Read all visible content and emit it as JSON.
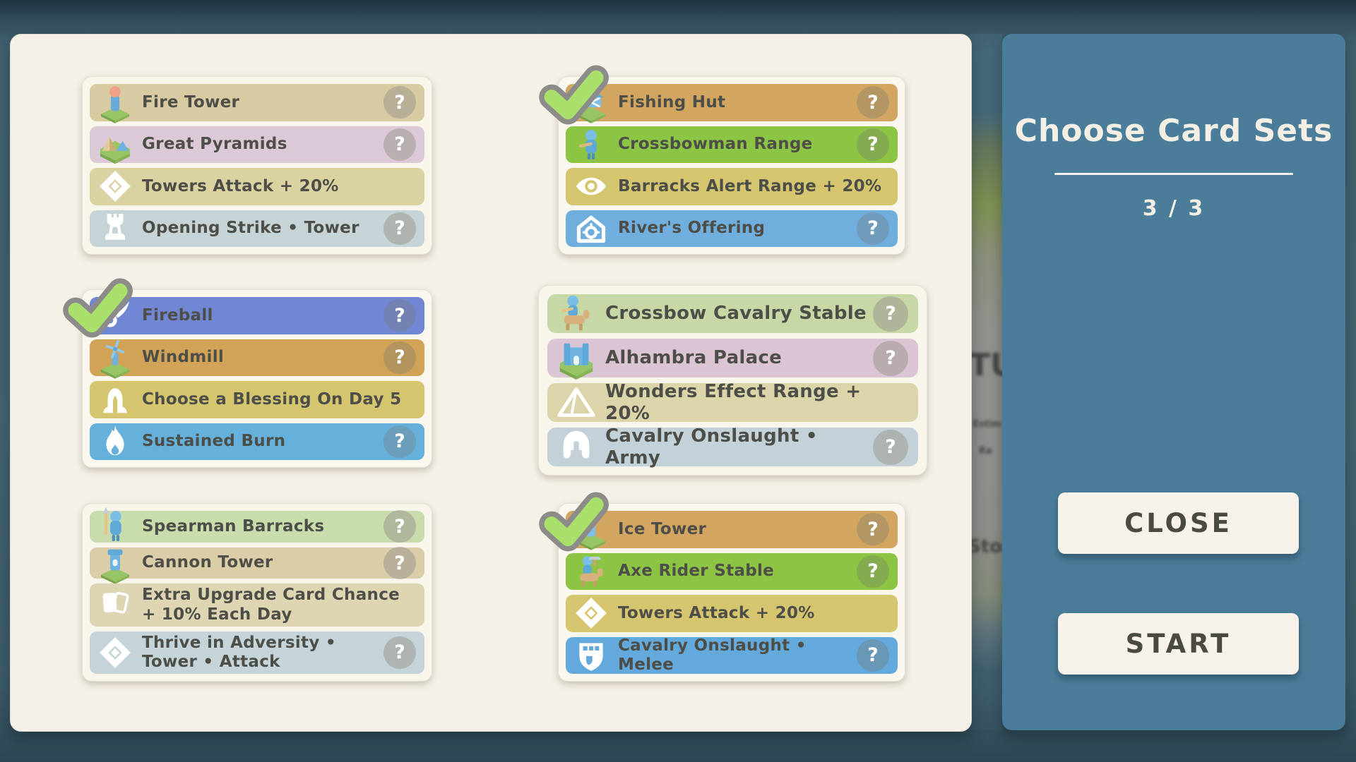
{
  "right_panel": {
    "title": "Choose Card Sets",
    "counter": "3 / 3",
    "close_label": "CLOSE",
    "start_label": "START"
  },
  "help_symbol": "?",
  "background_fragments": {
    "top": "TU",
    "mid1": "Estim",
    "mid2": "Ra",
    "bottom": "Stor"
  },
  "colors": {
    "right_panel_teal": "#4A7D99",
    "main_panel_cream": "#F5F1E8",
    "check_green": "#A9DF6B",
    "check_outline": "#8B8B89",
    "button_text": "#4A4A44",
    "row_text": "#4E4E48"
  },
  "sets": [
    {
      "name": "card-set-1",
      "selected": false,
      "rows": [
        {
          "label": "Fire Tower",
          "icon": "fire-tower",
          "color": "#D8CBA2",
          "help": true
        },
        {
          "label": "Great Pyramids",
          "icon": "great-pyramids",
          "color": "#DCC9D7",
          "help": true
        },
        {
          "label": "Towers Attack + 20%",
          "icon": "gear-burst",
          "color": "#DAD2A1",
          "help": false
        },
        {
          "label": "Opening Strike • Tower",
          "icon": "rook",
          "color": "#C6D4D7",
          "help": true
        }
      ]
    },
    {
      "name": "card-set-2",
      "selected": true,
      "rows": [
        {
          "label": "Fishing Hut",
          "icon": "fishing-hut",
          "color": "#D2A660",
          "help": true
        },
        {
          "label": "Crossbowman Range",
          "icon": "crossbowman",
          "color": "#8CC443",
          "help": true
        },
        {
          "label": "Barracks Alert Range + 20%",
          "icon": "eye",
          "color": "#D5C56F",
          "help": false
        },
        {
          "label": "River's Offering",
          "icon": "house-offering",
          "color": "#6FAEDD",
          "help": true
        }
      ]
    },
    {
      "name": "card-set-3",
      "selected": true,
      "rows": [
        {
          "label": "Fireball",
          "icon": "fireball",
          "color": "#7287D4",
          "help": true
        },
        {
          "label": "Windmill",
          "icon": "windmill",
          "color": "#D1A356",
          "help": true
        },
        {
          "label": "Choose a Blessing On Day 5",
          "icon": "blessing",
          "color": "#D5C56F",
          "help": false
        },
        {
          "label": "Sustained Burn",
          "icon": "flame",
          "color": "#66B1DC",
          "help": true
        }
      ]
    },
    {
      "name": "card-set-4",
      "selected": false,
      "rows": [
        {
          "label": "Crossbow Cavalry Stable",
          "icon": "crossbow-cavalry",
          "color": "#C7D7A6",
          "help": true
        },
        {
          "label": "Alhambra Palace",
          "icon": "alhambra",
          "color": "#DBC5D4",
          "help": true
        },
        {
          "label": "Wonders Effect Range + 20%",
          "icon": "pyramid-outline",
          "color": "#DDD5AA",
          "help": false
        },
        {
          "label": "Cavalry Onslaught • Army",
          "icon": "helmet",
          "color": "#C2D2D8",
          "help": true
        }
      ]
    },
    {
      "name": "card-set-5",
      "selected": false,
      "rows": [
        {
          "label": "Spearman Barracks",
          "icon": "spearman",
          "color": "#C9DCAC",
          "help": true
        },
        {
          "label": "Cannon Tower",
          "icon": "cannon-tower",
          "color": "#DCCDA9",
          "help": true
        },
        {
          "label": "Extra Upgrade Card Chance + 10% Each Day",
          "icon": "cards",
          "color": "#DED6B2",
          "help": false
        },
        {
          "label": "Thrive in Adversity • Tower • Attack",
          "icon": "gear-burst",
          "color": "#C4D4D8",
          "help": true
        }
      ]
    },
    {
      "name": "card-set-6",
      "selected": true,
      "rows": [
        {
          "label": "Ice Tower",
          "icon": "ice-tower",
          "color": "#D2A660",
          "help": true
        },
        {
          "label": "Axe Rider Stable",
          "icon": "axe-rider",
          "color": "#8CC443",
          "help": true
        },
        {
          "label": "Towers Attack + 20%",
          "icon": "gear-burst",
          "color": "#D5C56F",
          "help": false
        },
        {
          "label": "Cavalry Onslaught • Melee",
          "icon": "shield-grid",
          "color": "#64A9DB",
          "help": true
        }
      ]
    }
  ]
}
